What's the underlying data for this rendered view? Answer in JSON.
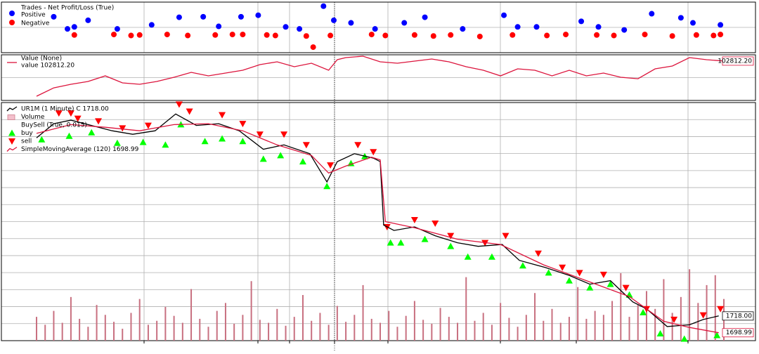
{
  "chart_data": [
    {
      "type": "scatter",
      "title": "Trades - Net Profit/Loss (True)",
      "xlim": [
        0,
        400
      ],
      "ylim": [
        -40,
        60
      ],
      "series": [
        {
          "name": "Positive",
          "color": "#0000ff",
          "x": [
            10,
            18,
            22,
            30,
            47,
            67,
            83,
            97,
            106,
            119,
            129,
            145,
            153,
            167,
            173,
            183,
            197,
            214,
            226,
            248,
            272,
            280,
            291,
            317,
            327,
            342,
            358,
            375,
            382,
            398
          ],
          "values": [
            31,
            7,
            11,
            24,
            7,
            15,
            30,
            31,
            12,
            31,
            34,
            11,
            7,
            52,
            24,
            19,
            7,
            19,
            30,
            7,
            34,
            11,
            11,
            22,
            11,
            5,
            37,
            29,
            19,
            15
          ]
        },
        {
          "name": "Negative",
          "color": "#ff0000",
          "x": [
            22,
            45,
            55,
            60,
            76,
            88,
            104,
            114,
            120,
            134,
            139,
            157,
            161,
            171,
            195,
            203,
            220,
            231,
            241,
            258,
            277,
            297,
            308,
            326,
            336,
            354,
            370,
            384,
            394,
            398
          ],
          "values": [
            -5,
            -4,
            -6,
            -5,
            -4,
            -6,
            -5,
            -4,
            -4,
            -5,
            -6,
            -7,
            -29,
            -6,
            -4,
            -6,
            -5,
            -7,
            -5,
            -8,
            -5,
            -6,
            -4,
            -5,
            -6,
            -4,
            -7,
            -5,
            -6,
            -4
          ]
        }
      ]
    },
    {
      "type": "line",
      "title": "Value (None)",
      "xlim": [
        0,
        400
      ],
      "ylim": [
        98500,
        103500
      ],
      "series": [
        {
          "name": "value 102812.20",
          "last_label": "102812.20",
          "color": "#dc143c",
          "x": [
            0,
            10,
            20,
            30,
            40,
            50,
            60,
            70,
            80,
            90,
            100,
            110,
            120,
            130,
            140,
            150,
            160,
            170,
            175,
            180,
            190,
            200,
            210,
            220,
            230,
            240,
            250,
            260,
            270,
            280,
            290,
            300,
            310,
            320,
            330,
            340,
            350,
            360,
            370,
            380,
            390,
            400
          ],
          "values": [
            98960,
            99880,
            100270,
            100580,
            101190,
            100420,
            100270,
            100580,
            101040,
            101580,
            101190,
            101500,
            101810,
            102420,
            102730,
            102190,
            102580,
            101810,
            102960,
            103190,
            103350,
            102730,
            102580,
            102810,
            103040,
            102730,
            102190,
            101810,
            101190,
            101960,
            101810,
            101190,
            101810,
            101190,
            101500,
            101040,
            100880,
            101960,
            102270,
            103190,
            102960,
            102812.2
          ]
        }
      ]
    },
    {
      "type": "line",
      "xlim": [
        0,
        400
      ],
      "ylim": [
        1690,
        1960
      ],
      "buysell_label": "BuySell (True, 0.015)",
      "volume": {
        "name": "Volume",
        "color": "#c87080",
        "ylim": [
          0,
          12000
        ],
        "values": [
          1200,
          800,
          1500,
          900,
          2200,
          1100,
          700,
          1800,
          1300,
          950,
          600,
          1400,
          2100,
          800,
          1000,
          1700,
          1250,
          900,
          2600,
          1100,
          700,
          1500,
          1900,
          850,
          1300,
          3000,
          1050,
          900,
          1600,
          750,
          1200,
          2300,
          1000,
          1400,
          800,
          1750,
          950,
          1300,
          2800,
          1100,
          900,
          1500,
          700,
          1250,
          2000,
          1050,
          850,
          1650,
          1200,
          900,
          3200,
          1000,
          1400,
          800,
          1900,
          1150,
          700,
          1300,
          2400,
          1000,
          1600,
          900,
          1200,
          2700,
          1100,
          1500,
          1300,
          2000,
          3400,
          1200,
          1800,
          2500,
          1600,
          3100,
          1400,
          2200,
          3600,
          1900,
          2800,
          3300,
          2100
        ]
      },
      "series": [
        {
          "name": "UR1M (1 Minute) C 1718.00",
          "last_label": "1718.00",
          "color": "#000000",
          "x": [
            0,
            10,
            20,
            32,
            44,
            56,
            69,
            81,
            93,
            106,
            118,
            132,
            144,
            159,
            169,
            175,
            185,
            196,
            200,
            202,
            208,
            220,
            232,
            245,
            257,
            271,
            281,
            296,
            310,
            322,
            334,
            347,
            355,
            367,
            380,
            388,
            397
          ],
          "values": [
            1920,
            1936,
            1940,
            1934,
            1928,
            1924,
            1928,
            1947,
            1934,
            1936,
            1928,
            1907,
            1912,
            1902,
            1870,
            1893,
            1902,
            1897,
            1893,
            1821,
            1815,
            1819,
            1809,
            1801,
            1797,
            1799,
            1781,
            1773,
            1764,
            1754,
            1758,
            1734,
            1726,
            1706,
            1708,
            1714,
            1718
          ]
        },
        {
          "name": "buy",
          "marker": "up",
          "color": "#00ff00",
          "x": [
            3,
            19,
            32,
            47,
            62,
            75,
            84,
            98,
            108,
            120,
            132,
            142,
            155,
            169,
            183,
            191,
            206,
            212,
            226,
            241,
            251,
            265,
            283,
            298,
            310,
            322,
            334,
            345,
            353,
            363,
            377,
            396
          ],
          "values": [
            1918,
            1922,
            1926,
            1914,
            1915,
            1912,
            1935,
            1916,
            1919,
            1916,
            1896,
            1900,
            1893,
            1865,
            1891,
            1899,
            1801,
            1801,
            1805,
            1797,
            1785,
            1785,
            1775,
            1767,
            1758,
            1750,
            1754,
            1742,
            1722,
            1698,
            1692,
            1696
          ]
        },
        {
          "name": "sell",
          "marker": "down",
          "color": "#ff0000",
          "x": [
            13,
            20,
            24,
            36,
            50,
            65,
            83,
            89,
            108,
            120,
            130,
            144,
            157,
            171,
            187,
            196,
            204,
            220,
            232,
            241,
            261,
            273,
            292,
            306,
            316,
            330,
            343,
            355,
            371,
            388,
            398
          ],
          "values": [
            1948,
            1948,
            1942,
            1939,
            1931,
            1934,
            1958,
            1950,
            1946,
            1936,
            1924,
            1924,
            1912,
            1889,
            1912,
            1904,
            1819,
            1827,
            1823,
            1809,
            1801,
            1809,
            1789,
            1773,
            1767,
            1765,
            1750,
            1726,
            1714,
            1719,
            1726
          ]
        },
        {
          "name": "SimpleMovingAverage (120) 1698.99",
          "last_label": "1698.99",
          "color": "#dc143c",
          "x": [
            0,
            20,
            40,
            60,
            80,
            100,
            120,
            140,
            160,
            170,
            180,
            195,
            200,
            203,
            220,
            245,
            270,
            295,
            320,
            345,
            365,
            380,
            397
          ],
          "values": [
            1925,
            1935,
            1932,
            1928,
            1935,
            1936,
            1928,
            1912,
            1900,
            1880,
            1888,
            1898,
            1895,
            1825,
            1818,
            1805,
            1799,
            1776,
            1758,
            1740,
            1712,
            1705,
            1698.99
          ]
        }
      ]
    }
  ]
}
